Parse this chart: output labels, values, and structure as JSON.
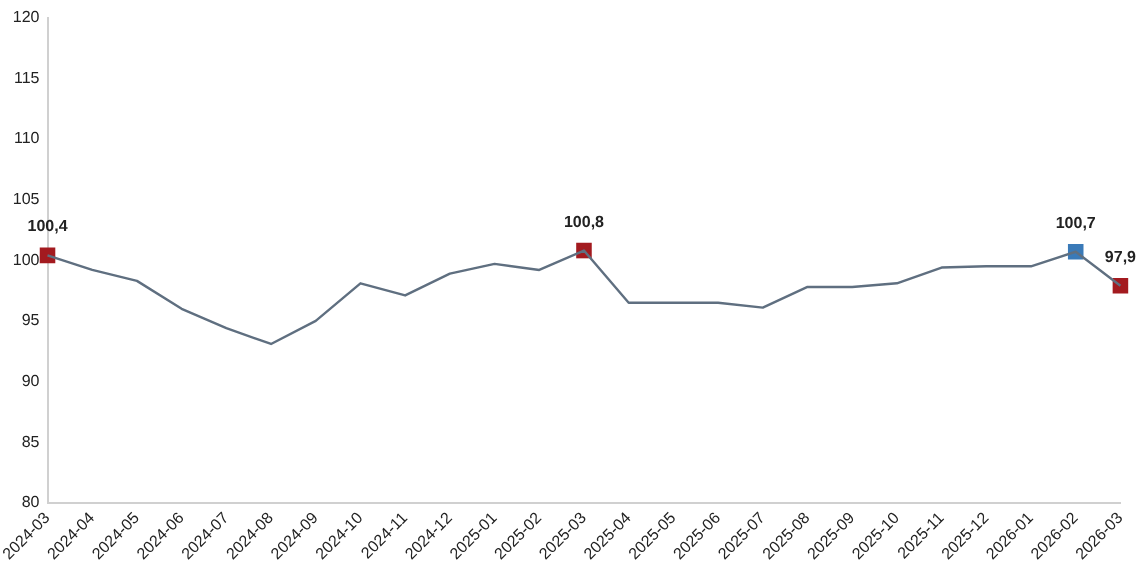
{
  "chart_data": {
    "type": "line",
    "categories": [
      "2024-03",
      "2024-04",
      "2024-05",
      "2024-06",
      "2024-07",
      "2024-08",
      "2024-09",
      "2024-10",
      "2024-11",
      "2024-12",
      "2025-01",
      "2025-02",
      "2025-03",
      "2025-04",
      "2025-05",
      "2025-06",
      "2025-07",
      "2025-08",
      "2025-09",
      "2025-10",
      "2025-11",
      "2025-12",
      "2026-01",
      "2026-02",
      "2026-03"
    ],
    "ylim": [
      80,
      120
    ],
    "yticks": [
      80,
      85,
      90,
      95,
      100,
      105,
      110,
      115,
      120
    ],
    "grid": false,
    "legend": false,
    "marker": "none",
    "line_style": "solid",
    "series": [
      {
        "color": "#5f6f80",
        "values": [
          100.4,
          99.2,
          98.3,
          96,
          94.4,
          93.1,
          95,
          98.1,
          97.1,
          98.9,
          99.7,
          99.2,
          100.8,
          96.5,
          96.5,
          96.5,
          96.1,
          97.8,
          97.8,
          98.1,
          99.4,
          99.5,
          99.5,
          100.7,
          97.9
        ]
      },
      {
        "type": "scatter",
        "marker": "square",
        "color": "#a31a1f",
        "values": [
          100.4,
          null,
          null,
          null,
          null,
          null,
          null,
          null,
          null,
          null,
          null,
          null,
          100.8,
          null,
          null,
          null,
          null,
          null,
          null,
          null,
          null,
          null,
          null,
          null,
          97.9
        ],
        "value_labels": [
          "100,4",
          null,
          null,
          null,
          null,
          null,
          null,
          null,
          null,
          null,
          null,
          null,
          "100,8",
          null,
          null,
          null,
          null,
          null,
          null,
          null,
          null,
          null,
          null,
          null,
          "97,9"
        ]
      },
      {
        "type": "scatter",
        "marker": "square",
        "color": "#3a7ab8",
        "values": [
          null,
          null,
          null,
          null,
          null,
          null,
          null,
          null,
          null,
          null,
          null,
          null,
          null,
          null,
          null,
          null,
          null,
          null,
          null,
          null,
          null,
          null,
          null,
          100.7,
          null
        ],
        "value_labels": [
          null,
          null,
          null,
          null,
          null,
          null,
          null,
          null,
          null,
          null,
          null,
          null,
          null,
          null,
          null,
          null,
          null,
          null,
          null,
          null,
          null,
          null,
          null,
          "100,7",
          null
        ]
      }
    ]
  }
}
